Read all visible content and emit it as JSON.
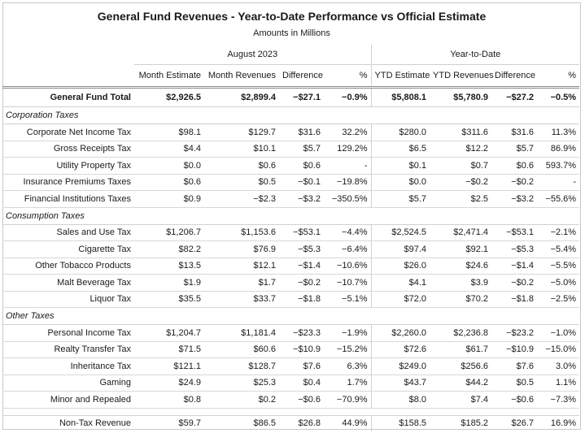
{
  "title": "General Fund Revenues - Year-to-Date Performance vs Official Estimate",
  "subtitle": "Amounts in Millions",
  "groups": {
    "month": "August 2023",
    "ytd": "Year-to-Date"
  },
  "columns": [
    "Month Estimate",
    "Month Revenues",
    "Difference",
    "%",
    "YTD Estimate",
    "YTD Revenues",
    "Difference",
    "%"
  ],
  "total": {
    "label": "General Fund Total",
    "values": [
      "$2,926.5",
      "$2,899.4",
      "−$27.1",
      "−0.9%",
      "$5,808.1",
      "$5,780.9",
      "−$27.2",
      "−0.5%"
    ]
  },
  "categories": [
    {
      "name": "Corporation Taxes",
      "rows": [
        {
          "label": "Corporate Net Income Tax",
          "values": [
            "$98.1",
            "$129.7",
            "$31.6",
            "32.2%",
            "$280.0",
            "$311.6",
            "$31.6",
            "11.3%"
          ]
        },
        {
          "label": "Gross Receipts Tax",
          "values": [
            "$4.4",
            "$10.1",
            "$5.7",
            "129.2%",
            "$6.5",
            "$12.2",
            "$5.7",
            "86.9%"
          ]
        },
        {
          "label": "Utility Property Tax",
          "values": [
            "$0.0",
            "$0.6",
            "$0.6",
            "-",
            "$0.1",
            "$0.7",
            "$0.6",
            "593.7%"
          ]
        },
        {
          "label": "Insurance Premiums Taxes",
          "values": [
            "$0.6",
            "$0.5",
            "−$0.1",
            "−19.8%",
            "$0.0",
            "−$0.2",
            "−$0.2",
            "-"
          ]
        },
        {
          "label": "Financial Institutions Taxes",
          "values": [
            "$0.9",
            "−$2.3",
            "−$3.2",
            "−350.5%",
            "$5.7",
            "$2.5",
            "−$3.2",
            "−55.6%"
          ]
        }
      ]
    },
    {
      "name": "Consumption Taxes",
      "rows": [
        {
          "label": "Sales and Use Tax",
          "values": [
            "$1,206.7",
            "$1,153.6",
            "−$53.1",
            "−4.4%",
            "$2,524.5",
            "$2,471.4",
            "−$53.1",
            "−2.1%"
          ]
        },
        {
          "label": "Cigarette Tax",
          "values": [
            "$82.2",
            "$76.9",
            "−$5.3",
            "−6.4%",
            "$97.4",
            "$92.1",
            "−$5.3",
            "−5.4%"
          ]
        },
        {
          "label": "Other Tobacco Products",
          "values": [
            "$13.5",
            "$12.1",
            "−$1.4",
            "−10.6%",
            "$26.0",
            "$24.6",
            "−$1.4",
            "−5.5%"
          ]
        },
        {
          "label": "Malt Beverage Tax",
          "values": [
            "$1.9",
            "$1.7",
            "−$0.2",
            "−10.7%",
            "$4.1",
            "$3.9",
            "−$0.2",
            "−5.0%"
          ]
        },
        {
          "label": "Liquor Tax",
          "values": [
            "$35.5",
            "$33.7",
            "−$1.8",
            "−5.1%",
            "$72.0",
            "$70.2",
            "−$1.8",
            "−2.5%"
          ]
        }
      ]
    },
    {
      "name": "Other Taxes",
      "rows": [
        {
          "label": "Personal Income Tax",
          "values": [
            "$1,204.7",
            "$1,181.4",
            "−$23.3",
            "−1.9%",
            "$2,260.0",
            "$2,236.8",
            "−$23.2",
            "−1.0%"
          ]
        },
        {
          "label": "Realty Transfer Tax",
          "values": [
            "$71.5",
            "$60.6",
            "−$10.9",
            "−15.2%",
            "$72.6",
            "$61.7",
            "−$10.9",
            "−15.0%"
          ]
        },
        {
          "label": "Inheritance Tax",
          "values": [
            "$121.1",
            "$128.7",
            "$7.6",
            "6.3%",
            "$249.0",
            "$256.6",
            "$7.6",
            "3.0%"
          ]
        },
        {
          "label": "Gaming",
          "values": [
            "$24.9",
            "$25.3",
            "$0.4",
            "1.7%",
            "$43.7",
            "$44.2",
            "$0.5",
            "1.1%"
          ]
        },
        {
          "label": "Minor and Repealed",
          "values": [
            "$0.8",
            "$0.2",
            "−$0.6",
            "−70.9%",
            "$8.0",
            "$7.4",
            "−$0.6",
            "−7.3%"
          ]
        }
      ]
    }
  ],
  "nontax": {
    "label": "Non-Tax Revenue",
    "values": [
      "$59.7",
      "$86.5",
      "$26.8",
      "44.9%",
      "$158.5",
      "$185.2",
      "$26.7",
      "16.9%"
    ]
  }
}
